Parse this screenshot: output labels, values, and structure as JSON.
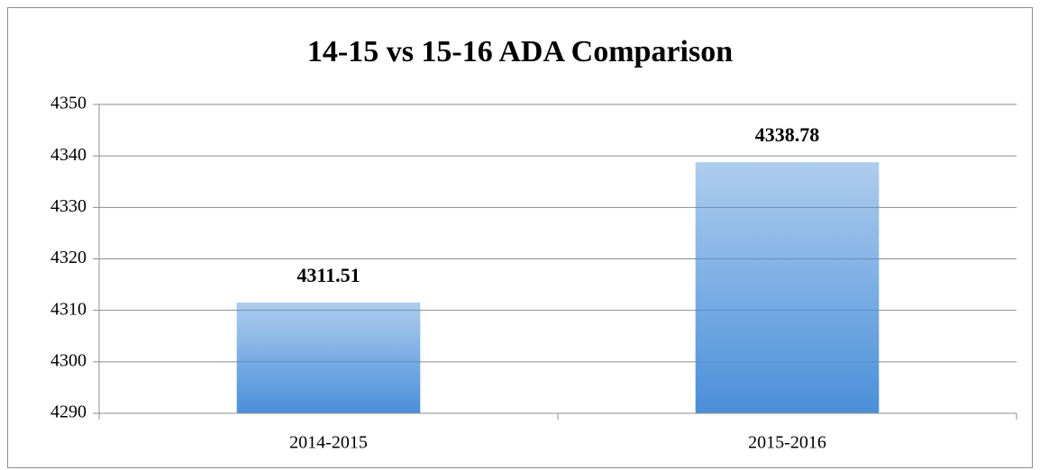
{
  "chart_data": {
    "type": "bar",
    "title": "14-15 vs 15-16 ADA Comparison",
    "categories": [
      "2014-2015",
      "2015-2016"
    ],
    "values": [
      4311.51,
      4338.78
    ],
    "color": "#4a8fd9",
    "ylim": [
      4290,
      4350
    ],
    "yticks": [
      4290,
      4300,
      4310,
      4320,
      4330,
      4340,
      4350
    ],
    "grid": true
  }
}
